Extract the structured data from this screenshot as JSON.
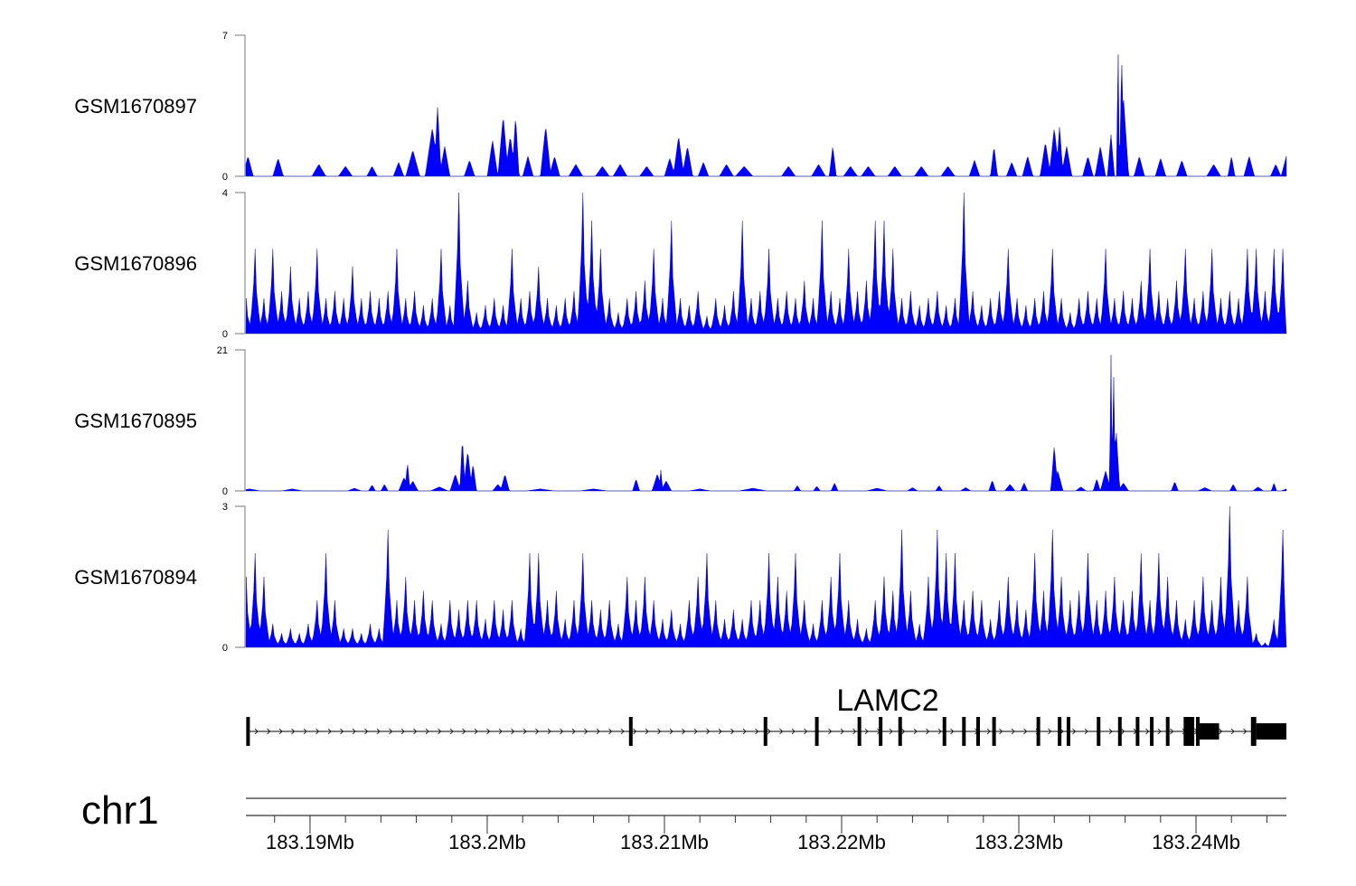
{
  "chart_data": {
    "type": "area",
    "title": "",
    "chromosome": "chr1",
    "position_unit": "kb offset from 183180 kb",
    "position_origin_kb": 183180,
    "xlim_kb": [
      6.38,
      65.1
    ],
    "x_ticks": [
      {
        "kb": 10,
        "label": "183.19Mb"
      },
      {
        "kb": 20,
        "label": "183.2Mb"
      },
      {
        "kb": 30,
        "label": "183.21Mb"
      },
      {
        "kb": 40,
        "label": "183.22Mb"
      },
      {
        "kb": 50,
        "label": "183.23Mb"
      },
      {
        "kb": 60,
        "label": "183.24Mb"
      }
    ],
    "minor_tick_step_kb": 2,
    "fill_color": "#0000ff",
    "tracks": [
      {
        "name": "GSM1670897",
        "ylim": [
          0,
          7
        ],
        "ytick_labels": [
          "0",
          "7"
        ],
        "format": "peaks",
        "peaks": [
          [
            6.5,
            1,
            0.3
          ],
          [
            8.2,
            0.9,
            0.3
          ],
          [
            10.5,
            0.6,
            0.4
          ],
          [
            12,
            0.5,
            0.4
          ],
          [
            13.5,
            0.5,
            0.3
          ],
          [
            15,
            0.7,
            0.3
          ],
          [
            15.8,
            1.3,
            0.4
          ],
          [
            16.9,
            2.4,
            0.4
          ],
          [
            17.2,
            3.5,
            0.2
          ],
          [
            17.6,
            1.5,
            0.3
          ],
          [
            19,
            0.8,
            0.3
          ],
          [
            20.3,
            1.8,
            0.3
          ],
          [
            20.9,
            3,
            0.3
          ],
          [
            21.3,
            2,
            0.3
          ],
          [
            21.6,
            3,
            0.2
          ],
          [
            22.3,
            1,
            0.3
          ],
          [
            23.3,
            2.5,
            0.3
          ],
          [
            23.8,
            1,
            0.3
          ],
          [
            25,
            0.6,
            0.4
          ],
          [
            26.5,
            0.5,
            0.4
          ],
          [
            27.5,
            0.6,
            0.4
          ],
          [
            29,
            0.5,
            0.4
          ],
          [
            30.3,
            0.9,
            0.3
          ],
          [
            30.8,
            2,
            0.3
          ],
          [
            31.3,
            1.5,
            0.3
          ],
          [
            32.2,
            0.7,
            0.3
          ],
          [
            33.5,
            0.6,
            0.4
          ],
          [
            34.5,
            0.5,
            0.5
          ],
          [
            37,
            0.5,
            0.4
          ],
          [
            38.7,
            0.6,
            0.4
          ],
          [
            39.5,
            1.5,
            0.2
          ],
          [
            40.5,
            0.5,
            0.4
          ],
          [
            41.5,
            0.5,
            0.4
          ],
          [
            43,
            0.5,
            0.4
          ],
          [
            44.5,
            0.5,
            0.4
          ],
          [
            46,
            0.5,
            0.4
          ],
          [
            47.5,
            0.8,
            0.3
          ],
          [
            48.6,
            1.5,
            0.2
          ],
          [
            49.6,
            0.7,
            0.3
          ],
          [
            50.5,
            1,
            0.3
          ],
          [
            51.5,
            1.7,
            0.3
          ],
          [
            52,
            2.4,
            0.3
          ],
          [
            52.3,
            2.5,
            0.2
          ],
          [
            52.7,
            1.5,
            0.3
          ],
          [
            53.9,
            1,
            0.3
          ],
          [
            54.6,
            1.5,
            0.3
          ],
          [
            55.2,
            2.1,
            0.2
          ],
          [
            55.6,
            7,
            0.08
          ],
          [
            55.8,
            6.5,
            0.1
          ],
          [
            55.9,
            4,
            0.3
          ],
          [
            56.8,
            1,
            0.3
          ],
          [
            58,
            0.9,
            0.3
          ],
          [
            59.2,
            0.8,
            0.3
          ],
          [
            61,
            0.6,
            0.4
          ],
          [
            62,
            1,
            0.2
          ],
          [
            63,
            1,
            0.3
          ],
          [
            64.5,
            0.6,
            0.3
          ],
          [
            65.1,
            1,
            0.3
          ]
        ]
      },
      {
        "name": "GSM1670896",
        "ylim": [
          0,
          4
        ],
        "ytick_labels": [
          "0",
          "4"
        ],
        "format": "bins",
        "bin_start_kb": 6.4,
        "bin_kb": 0.5,
        "values": [
          1,
          2.4,
          1,
          2.4,
          1.2,
          1.9,
          1,
          1.2,
          2.4,
          1,
          1.2,
          1,
          1.9,
          1,
          1.2,
          1,
          1.2,
          2.4,
          1,
          1.2,
          0.8,
          1,
          2.4,
          0.8,
          4,
          1.5,
          0.6,
          0.8,
          1,
          0.8,
          2.4,
          1,
          1.2,
          1.9,
          1,
          0.8,
          1,
          1.2,
          4,
          3.2,
          2.4,
          1,
          0.6,
          1,
          1.2,
          1.5,
          2.4,
          1,
          3.2,
          1,
          0.8,
          1.2,
          0.5,
          1,
          0.8,
          1.2,
          3.2,
          1,
          1.2,
          2.4,
          1,
          1.2,
          1,
          1.5,
          1,
          3.2,
          1.2,
          1,
          2.4,
          1.2,
          1.5,
          3.2,
          3.2,
          2.4,
          1,
          1.2,
          0.8,
          1,
          1.2,
          0.8,
          1,
          4,
          1.2,
          0.8,
          1,
          1.2,
          2.4,
          1,
          0.8,
          1,
          1.2,
          2.4,
          1,
          0.6,
          1,
          1.2,
          1,
          2.4,
          1,
          1.2,
          1,
          1.5,
          2.4,
          1.2,
          1,
          1.5,
          2.4,
          1,
          1.2,
          2.4,
          1,
          1.2,
          1,
          2.4,
          2.4,
          1.2,
          2.4,
          2.4
        ]
      },
      {
        "name": "GSM1670895",
        "ylim": [
          0,
          21
        ],
        "ytick_labels": [
          "0",
          "21"
        ],
        "format": "peaks",
        "peaks": [
          [
            6.6,
            0.3,
            0.6
          ],
          [
            9,
            0.3,
            0.6
          ],
          [
            12.5,
            0.4,
            0.4
          ],
          [
            13.5,
            0.9,
            0.2
          ],
          [
            14.2,
            1,
            0.2
          ],
          [
            15.3,
            2,
            0.3
          ],
          [
            15.5,
            4.2,
            0.15
          ],
          [
            15.8,
            1.5,
            0.3
          ],
          [
            17.3,
            0.6,
            0.5
          ],
          [
            18.2,
            2.5,
            0.3
          ],
          [
            18.6,
            8,
            0.15
          ],
          [
            18.9,
            6,
            0.25
          ],
          [
            19.2,
            4,
            0.2
          ],
          [
            20.6,
            1,
            0.3
          ],
          [
            21,
            2.5,
            0.25
          ],
          [
            23,
            0.3,
            0.8
          ],
          [
            26,
            0.3,
            0.8
          ],
          [
            28.4,
            1.8,
            0.2
          ],
          [
            29.6,
            2.5,
            0.3
          ],
          [
            29.8,
            3.2,
            0.1
          ],
          [
            30.1,
            1.5,
            0.3
          ],
          [
            32,
            0.3,
            0.6
          ],
          [
            35,
            0.4,
            0.8
          ],
          [
            37.5,
            0.8,
            0.2
          ],
          [
            38.6,
            0.7,
            0.2
          ],
          [
            39.6,
            1.2,
            0.2
          ],
          [
            42,
            0.4,
            0.6
          ],
          [
            44,
            0.5,
            0.3
          ],
          [
            45.5,
            0.8,
            0.2
          ],
          [
            47,
            0.5,
            0.3
          ],
          [
            48.5,
            1.6,
            0.2
          ],
          [
            49.5,
            1,
            0.3
          ],
          [
            50.3,
            1.2,
            0.2
          ],
          [
            52,
            6.8,
            0.2
          ],
          [
            52.2,
            3,
            0.3
          ],
          [
            53.5,
            0.6,
            0.3
          ],
          [
            54.4,
            1.8,
            0.2
          ],
          [
            54.9,
            3,
            0.3
          ],
          [
            55.2,
            21,
            0.08
          ],
          [
            55.35,
            18,
            0.1
          ],
          [
            55.5,
            9,
            0.2
          ],
          [
            55.9,
            1.2,
            0.3
          ],
          [
            58.8,
            1.4,
            0.2
          ],
          [
            60.5,
            0.5,
            0.4
          ],
          [
            62.1,
            1,
            0.2
          ],
          [
            63.5,
            0.6,
            0.3
          ],
          [
            64.4,
            1.2,
            0.15
          ],
          [
            65.1,
            0.3,
            0.3
          ]
        ]
      },
      {
        "name": "GSM1670894",
        "ylim": [
          0,
          3
        ],
        "ytick_labels": [
          "0",
          "3"
        ],
        "format": "bins",
        "bin_start_kb": 6.4,
        "bin_kb": 0.5,
        "values": [
          1.5,
          2,
          1.5,
          0.5,
          0.3,
          0.4,
          0.3,
          0.5,
          1,
          2,
          1,
          0.4,
          0.4,
          0.3,
          0.5,
          0.4,
          2.5,
          1,
          1.5,
          1,
          1.2,
          1,
          0.5,
          1,
          0.8,
          1,
          1,
          0.6,
          1,
          0.8,
          1,
          0.4,
          2,
          2,
          1,
          1.2,
          0.6,
          1,
          2,
          1,
          0.8,
          1,
          0.5,
          1.5,
          1,
          1.5,
          1,
          0.6,
          0.8,
          0.5,
          1,
          1.5,
          2,
          1,
          0.6,
          0.8,
          0.6,
          1,
          1,
          2,
          1.5,
          1.2,
          2,
          1,
          0.5,
          1,
          1.5,
          2,
          1,
          0.6,
          0.4,
          1,
          1.5,
          1.2,
          2.5,
          1.2,
          0.5,
          1.5,
          2.5,
          2,
          2,
          1,
          1.2,
          1,
          0.6,
          1,
          1.5,
          1,
          0.8,
          2,
          1.2,
          2.5,
          1.5,
          1,
          1.2,
          2,
          1,
          1.2,
          1.5,
          1,
          1.2,
          2,
          1,
          2,
          1.5,
          1,
          0.6,
          1,
          1.5,
          1,
          1.5,
          3,
          1,
          1.5,
          0.3,
          0.1,
          0.6,
          2.5
        ]
      }
    ],
    "gene": {
      "name": "LAMC2",
      "strand": "+",
      "start_kb": 6.4,
      "end_kb": 65.1,
      "exons": [
        [
          6.4,
          6.5,
          "cds"
        ],
        [
          28.0,
          28.1,
          "cds"
        ],
        [
          35.6,
          35.7,
          "cds"
        ],
        [
          38.5,
          38.6,
          "cds"
        ],
        [
          40.9,
          41.0,
          "cds"
        ],
        [
          42.1,
          42.2,
          "cds"
        ],
        [
          43.2,
          43.3,
          "cds"
        ],
        [
          45.7,
          45.8,
          "cds"
        ],
        [
          46.8,
          46.9,
          "cds"
        ],
        [
          47.6,
          47.7,
          "cds"
        ],
        [
          48.5,
          48.6,
          "cds"
        ],
        [
          51.0,
          51.1,
          "cds"
        ],
        [
          52.2,
          52.3,
          "cds"
        ],
        [
          52.7,
          52.8,
          "cds"
        ],
        [
          54.4,
          54.5,
          "cds"
        ],
        [
          55.6,
          55.7,
          "cds"
        ],
        [
          56.6,
          56.7,
          "cds"
        ],
        [
          57.4,
          57.5,
          "cds"
        ],
        [
          58.3,
          58.4,
          "cds"
        ],
        [
          59.3,
          59.9,
          "cds"
        ],
        [
          60.0,
          60.2,
          "cds"
        ],
        [
          60.2,
          61.3,
          "utr"
        ],
        [
          63.1,
          63.4,
          "cds"
        ],
        [
          63.4,
          65.1,
          "utr"
        ]
      ]
    }
  }
}
